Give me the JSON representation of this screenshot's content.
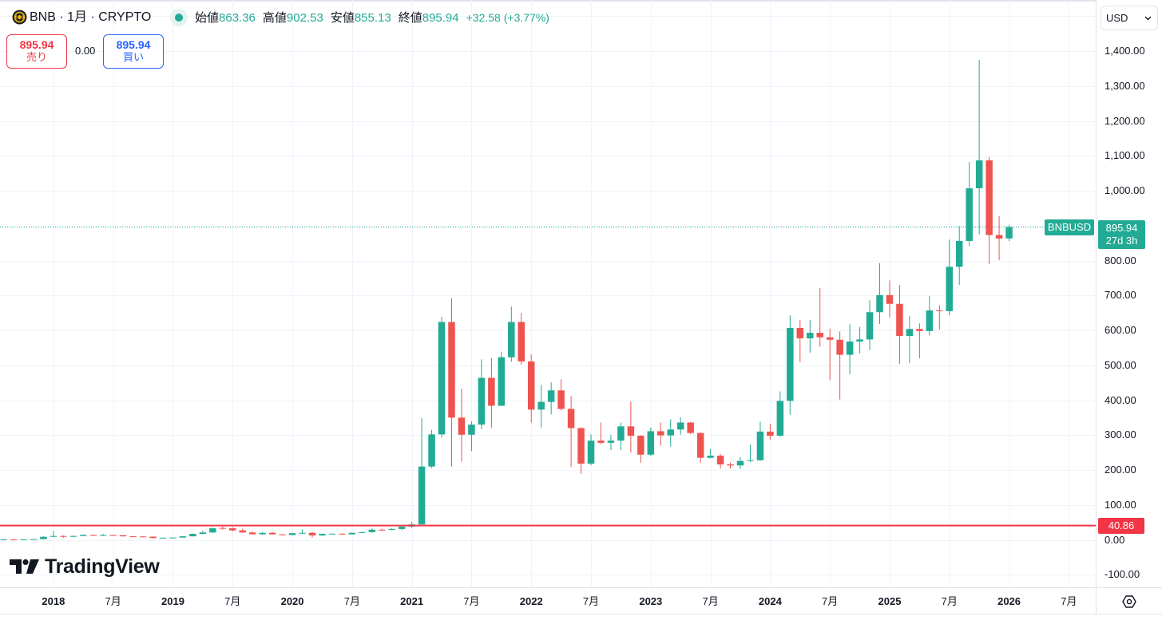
{
  "header": {
    "title": "BNB · 1月 · CRYPTO",
    "symbol": "BNB",
    "interval": "1月",
    "exchange": "CRYPTO",
    "market_status": "open",
    "ohlc": {
      "open_label": "始値",
      "open": "863.36",
      "high_label": "高値",
      "high": "902.53",
      "low_label": "安値",
      "low": "855.13",
      "close_label": "終値",
      "close": "895.94",
      "change": "+32.58 (+3.77%)"
    }
  },
  "trade": {
    "sell_price": "895.94",
    "sell_label": "売り",
    "spread": "0.00",
    "buy_price": "895.94",
    "buy_label": "買い"
  },
  "currency": {
    "selected": "USD"
  },
  "price_labels": {
    "symbol": "BNBUSD",
    "last_price": "895.94",
    "countdown": "27d 3h",
    "hline_price": "40.86"
  },
  "price_axis": {
    "labels": [
      {
        "value": 1400,
        "text": "1,400.00"
      },
      {
        "value": 1300,
        "text": "1,300.00"
      },
      {
        "value": 1200,
        "text": "1,200.00"
      },
      {
        "value": 1100,
        "text": "1,100.00"
      },
      {
        "value": 1000,
        "text": "1,000.00"
      },
      {
        "value": 800,
        "text": "800.00"
      },
      {
        "value": 700,
        "text": "700.00"
      },
      {
        "value": 600,
        "text": "600.00"
      },
      {
        "value": 500,
        "text": "500.00"
      },
      {
        "value": 400,
        "text": "400.00"
      },
      {
        "value": 300,
        "text": "300.00"
      },
      {
        "value": 200,
        "text": "200.00"
      },
      {
        "value": 100,
        "text": "100.00"
      },
      {
        "value": 0,
        "text": "0.00"
      },
      {
        "value": -100,
        "text": "-100.00"
      }
    ]
  },
  "time_axis": {
    "labels": [
      {
        "date": "2018-01",
        "text": "2018",
        "year": true
      },
      {
        "date": "2018-07",
        "text": "7月",
        "year": false
      },
      {
        "date": "2019-01",
        "text": "2019",
        "year": true
      },
      {
        "date": "2019-07",
        "text": "7月",
        "year": false
      },
      {
        "date": "2020-01",
        "text": "2020",
        "year": true
      },
      {
        "date": "2020-07",
        "text": "7月",
        "year": false
      },
      {
        "date": "2021-01",
        "text": "2021",
        "year": true
      },
      {
        "date": "2021-07",
        "text": "7月",
        "year": false
      },
      {
        "date": "2022-01",
        "text": "2022",
        "year": true
      },
      {
        "date": "2022-07",
        "text": "7月",
        "year": false
      },
      {
        "date": "2023-01",
        "text": "2023",
        "year": true
      },
      {
        "date": "2023-07",
        "text": "7月",
        "year": false
      },
      {
        "date": "2024-01",
        "text": "2024",
        "year": true
      },
      {
        "date": "2024-07",
        "text": "7月",
        "year": false
      },
      {
        "date": "2025-01",
        "text": "2025",
        "year": true
      },
      {
        "date": "2025-07",
        "text": "7月",
        "year": false
      },
      {
        "date": "2026-01",
        "text": "2026",
        "year": true
      },
      {
        "date": "2026-07",
        "text": "7月",
        "year": false
      }
    ]
  },
  "branding": {
    "logo_text": "TradingView"
  },
  "icons": {
    "symbol_logo": "bnb-coin-icon",
    "status": "market-open-dot-icon",
    "currency_dropdown": "chevron-down-icon",
    "settings": "hexagon-gear-icon",
    "logo": "tradingview-logo-icon"
  },
  "colors": {
    "up": "#22ab94",
    "down": "#ef5350",
    "sell": "#f23645",
    "buy": "#2962ff",
    "hline": "#f23645",
    "grid": "#f0f3fa",
    "text": "#131722"
  },
  "chart_data": {
    "type": "candlestick",
    "title": "BNB · 1月 · CRYPTO",
    "symbol": "BNBUSD",
    "interval": "1M",
    "xlabel": "",
    "ylabel": "USD",
    "xlim": [
      "2017-07-20",
      "2026-09-22"
    ],
    "ylim": [
      -136,
      1546.3
    ],
    "ytick_step": 100,
    "grid": true,
    "legend_position": "top-left",
    "last_price": 895.94,
    "hlines": [
      {
        "value": 40.86,
        "label": "40.86"
      }
    ],
    "columns": [
      "date",
      "open",
      "high",
      "low",
      "close"
    ],
    "rows": [
      [
        "2017-08",
        1.0,
        2.0,
        0.9,
        1.5
      ],
      [
        "2017-09",
        1.5,
        2.0,
        1.2,
        1.4
      ],
      [
        "2017-10",
        1.4,
        1.8,
        1.3,
        1.6
      ],
      [
        "2017-11",
        1.6,
        2.2,
        1.5,
        2.0
      ],
      [
        "2017-12",
        2.0,
        10.0,
        1.9,
        8.6
      ],
      [
        "2018-01",
        8.6,
        25.0,
        7.5,
        11.0
      ],
      [
        "2018-02",
        11.0,
        12.5,
        5.5,
        10.0
      ],
      [
        "2018-03",
        10.0,
        12.0,
        8.0,
        11.0
      ],
      [
        "2018-04",
        11.0,
        15.5,
        10.0,
        14.0
      ],
      [
        "2018-05",
        14.0,
        15.0,
        11.0,
        12.5
      ],
      [
        "2018-06",
        12.5,
        17.0,
        11.0,
        13.5
      ],
      [
        "2018-07",
        13.5,
        15.0,
        12.0,
        13.0
      ],
      [
        "2018-08",
        13.0,
        14.0,
        9.0,
        10.0
      ],
      [
        "2018-09",
        10.0,
        11.0,
        9.0,
        9.5
      ],
      [
        "2018-10",
        9.5,
        10.5,
        8.5,
        9.0
      ],
      [
        "2018-11",
        9.0,
        9.5,
        4.5,
        5.0
      ],
      [
        "2018-12",
        5.0,
        6.5,
        4.2,
        6.0
      ],
      [
        "2019-01",
        6.0,
        7.0,
        5.0,
        6.5
      ],
      [
        "2019-02",
        6.5,
        11.0,
        6.0,
        10.0
      ],
      [
        "2019-03",
        10.0,
        18.0,
        9.5,
        17.0
      ],
      [
        "2019-04",
        17.0,
        26.0,
        16.0,
        21.0
      ],
      [
        "2019-05",
        21.0,
        35.0,
        20.0,
        33.0
      ],
      [
        "2019-06",
        34.0,
        40.0,
        29.0,
        33.0
      ],
      [
        "2019-07",
        33.0,
        36.0,
        24.0,
        27.0
      ],
      [
        "2019-08",
        27.0,
        32.0,
        20.0,
        21.0
      ],
      [
        "2019-09",
        21.0,
        23.0,
        15.0,
        16.0
      ],
      [
        "2019-10",
        16.0,
        22.0,
        14.5,
        20.0
      ],
      [
        "2019-11",
        20.0,
        22.0,
        15.0,
        15.5
      ],
      [
        "2019-12",
        15.5,
        16.0,
        12.8,
        13.7
      ],
      [
        "2020-01",
        13.7,
        20.0,
        13.0,
        19.0
      ],
      [
        "2020-02",
        19.0,
        30.0,
        18.0,
        20.0
      ],
      [
        "2020-03",
        20.0,
        23.0,
        6.5,
        12.5
      ],
      [
        "2020-04",
        12.5,
        18.0,
        11.0,
        17.0
      ],
      [
        "2020-05",
        17.0,
        18.5,
        15.5,
        17.5
      ],
      [
        "2020-06",
        17.5,
        19.0,
        15.0,
        15.5
      ],
      [
        "2020-07",
        15.5,
        20.5,
        15.0,
        20.0
      ],
      [
        "2020-08",
        20.0,
        24.0,
        19.5,
        22.0
      ],
      [
        "2020-09",
        22.0,
        33.0,
        20.0,
        29.0
      ],
      [
        "2020-10",
        29.0,
        32.0,
        26.0,
        28.5
      ],
      [
        "2020-11",
        28.5,
        34.0,
        27.0,
        31.0
      ],
      [
        "2020-12",
        31.0,
        42.0,
        27.0,
        37.5
      ],
      [
        "2021-01",
        37.5,
        52.0,
        34.0,
        44.0
      ],
      [
        "2021-02",
        44.0,
        348.0,
        41.0,
        210.0
      ],
      [
        "2021-03",
        210.0,
        315.0,
        205.0,
        302.0
      ],
      [
        "2021-04",
        302.0,
        638.0,
        293.0,
        624.0
      ],
      [
        "2021-05",
        624.0,
        692.0,
        210.0,
        350.0
      ],
      [
        "2021-06",
        350.0,
        433.0,
        224.0,
        301.0
      ],
      [
        "2021-07",
        301.0,
        339.0,
        254.0,
        330.0
      ],
      [
        "2021-08",
        330.0,
        517.0,
        317.0,
        464.0
      ],
      [
        "2021-09",
        464.0,
        521.0,
        320.0,
        384.0
      ],
      [
        "2021-10",
        384.0,
        539.0,
        383.0,
        523.0
      ],
      [
        "2021-11",
        523.0,
        668.0,
        510.0,
        624.0
      ],
      [
        "2021-12",
        624.0,
        650.0,
        502.0,
        511.0
      ],
      [
        "2022-01",
        511.0,
        531.0,
        336.0,
        373.0
      ],
      [
        "2022-02",
        373.0,
        444.0,
        322.0,
        395.0
      ],
      [
        "2022-03",
        395.0,
        451.0,
        359.0,
        428.0
      ],
      [
        "2022-04",
        428.0,
        460.0,
        370.0,
        375.0
      ],
      [
        "2022-05",
        375.0,
        412.0,
        208.0,
        320.0
      ],
      [
        "2022-06",
        320.0,
        322.0,
        189.0,
        218.0
      ],
      [
        "2022-07",
        218.0,
        302.0,
        214.0,
        284.0
      ],
      [
        "2022-08",
        284.0,
        336.0,
        274.0,
        278.0
      ],
      [
        "2022-09",
        278.0,
        300.0,
        257.0,
        284.0
      ],
      [
        "2022-10",
        284.0,
        336.0,
        257.0,
        325.0
      ],
      [
        "2022-11",
        325.0,
        396.0,
        250.0,
        298.0
      ],
      [
        "2022-12",
        298.0,
        300.0,
        221.0,
        244.0
      ],
      [
        "2023-01",
        244.0,
        322.0,
        240.0,
        311.0
      ],
      [
        "2023-02",
        311.0,
        336.0,
        270.0,
        299.0
      ],
      [
        "2023-03",
        299.0,
        345.0,
        267.0,
        316.0
      ],
      [
        "2023-04",
        316.0,
        351.0,
        301.0,
        336.0
      ],
      [
        "2023-05",
        336.0,
        338.0,
        303.0,
        306.0
      ],
      [
        "2023-06",
        306.0,
        308.0,
        220.0,
        235.0
      ],
      [
        "2023-07",
        235.0,
        260.0,
        233.0,
        241.0
      ],
      [
        "2023-08",
        241.0,
        246.0,
        204.0,
        216.0
      ],
      [
        "2023-09",
        216.0,
        221.0,
        204.0,
        213.0
      ],
      [
        "2023-10",
        213.0,
        237.0,
        203.0,
        226.0
      ],
      [
        "2023-11",
        226.0,
        272.0,
        222.0,
        228.0
      ],
      [
        "2023-12",
        228.0,
        338.0,
        226.0,
        310.0
      ],
      [
        "2024-01",
        310.0,
        333.0,
        287.0,
        298.0
      ],
      [
        "2024-02",
        298.0,
        425.0,
        295.0,
        398.0
      ],
      [
        "2024-03",
        398.0,
        643.0,
        358.0,
        607.0
      ],
      [
        "2024-04",
        607.0,
        630.0,
        509.0,
        577.0
      ],
      [
        "2024-05",
        577.0,
        630.0,
        536.0,
        593.0
      ],
      [
        "2024-06",
        593.0,
        721.0,
        553.0,
        580.0
      ],
      [
        "2024-07",
        580.0,
        605.0,
        457.0,
        573.0
      ],
      [
        "2024-08",
        573.0,
        597.0,
        402.0,
        530.0
      ],
      [
        "2024-09",
        530.0,
        618.0,
        474.0,
        568.0
      ],
      [
        "2024-10",
        568.0,
        610.0,
        534.0,
        574.0
      ],
      [
        "2024-11",
        574.0,
        686.0,
        544.0,
        652.0
      ],
      [
        "2024-12",
        652.0,
        792.0,
        618.0,
        701.0
      ],
      [
        "2025-01",
        701.0,
        743.0,
        637.0,
        676.0
      ],
      [
        "2025-02",
        676.0,
        730.0,
        504.0,
        584.0
      ],
      [
        "2025-03",
        584.0,
        642.0,
        506.0,
        604.0
      ],
      [
        "2025-04",
        604.0,
        620.0,
        520.0,
        598.0
      ],
      [
        "2025-05",
        598.0,
        698.0,
        585.0,
        657.0
      ],
      [
        "2025-06",
        657.0,
        672.0,
        602.0,
        655.0
      ],
      [
        "2025-07",
        655.0,
        860.0,
        643.0,
        782.0
      ],
      [
        "2025-08",
        782.0,
        898.0,
        730.0,
        856.0
      ],
      [
        "2025-09",
        856.0,
        1082.0,
        841.0,
        1007.0
      ],
      [
        "2025-10",
        1007.0,
        1375.0,
        875.0,
        1087.0
      ],
      [
        "2025-11",
        1087.0,
        1097.0,
        790.0,
        873.0
      ],
      [
        "2025-12",
        873.0,
        927.0,
        801.0,
        863.0
      ],
      [
        "2026-01",
        863.36,
        902.53,
        855.13,
        895.94
      ]
    ]
  }
}
